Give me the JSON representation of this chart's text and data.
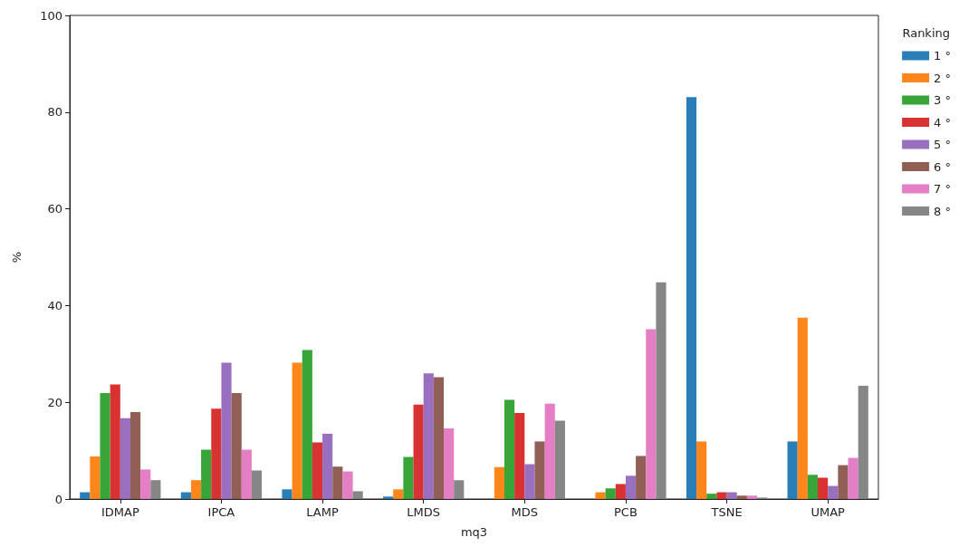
{
  "chart_data": {
    "type": "bar",
    "xlabel": "mq3",
    "ylabel": "%",
    "legend_title": "Ranking",
    "categories": [
      "IDMAP",
      "IPCA",
      "LAMP",
      "LMDS",
      "MDS",
      "PCB",
      "TSNE",
      "UMAP"
    ],
    "series": [
      {
        "name": "1 °",
        "color": "#1f77b4",
        "values": [
          1.4,
          1.4,
          2.0,
          0.5,
          null,
          null,
          83.1,
          11.9
        ]
      },
      {
        "name": "2 °",
        "color": "#ff7f0e",
        "values": [
          8.8,
          3.9,
          28.2,
          2.0,
          6.6,
          1.4,
          11.9,
          37.5
        ]
      },
      {
        "name": "3 °",
        "color": "#2ca02c",
        "values": [
          21.9,
          10.2,
          30.8,
          8.7,
          20.5,
          2.2,
          1.1,
          5.0
        ]
      },
      {
        "name": "4 °",
        "color": "#d62728",
        "values": [
          23.7,
          18.7,
          11.7,
          19.5,
          17.8,
          3.1,
          1.4,
          4.4
        ]
      },
      {
        "name": "5 °",
        "color": "#9467bd",
        "values": [
          16.7,
          28.2,
          13.5,
          26.0,
          7.2,
          4.8,
          1.4,
          2.7
        ]
      },
      {
        "name": "6 °",
        "color": "#8c564b",
        "values": [
          18.0,
          21.9,
          6.7,
          25.2,
          11.9,
          8.9,
          0.7,
          7.0
        ]
      },
      {
        "name": "7 °",
        "color": "#e377c2",
        "values": [
          6.1,
          10.2,
          5.7,
          14.6,
          19.7,
          35.1,
          0.7,
          8.5
        ]
      },
      {
        "name": "8 °",
        "color": "#7f7f7f",
        "values": [
          3.9,
          5.9,
          1.6,
          3.9,
          16.2,
          44.8,
          0.3,
          23.4
        ]
      }
    ],
    "ylim": [
      0,
      100
    ],
    "yticks": [
      0,
      20,
      40,
      60,
      80,
      100
    ],
    "grid": false,
    "legend": "top right"
  }
}
